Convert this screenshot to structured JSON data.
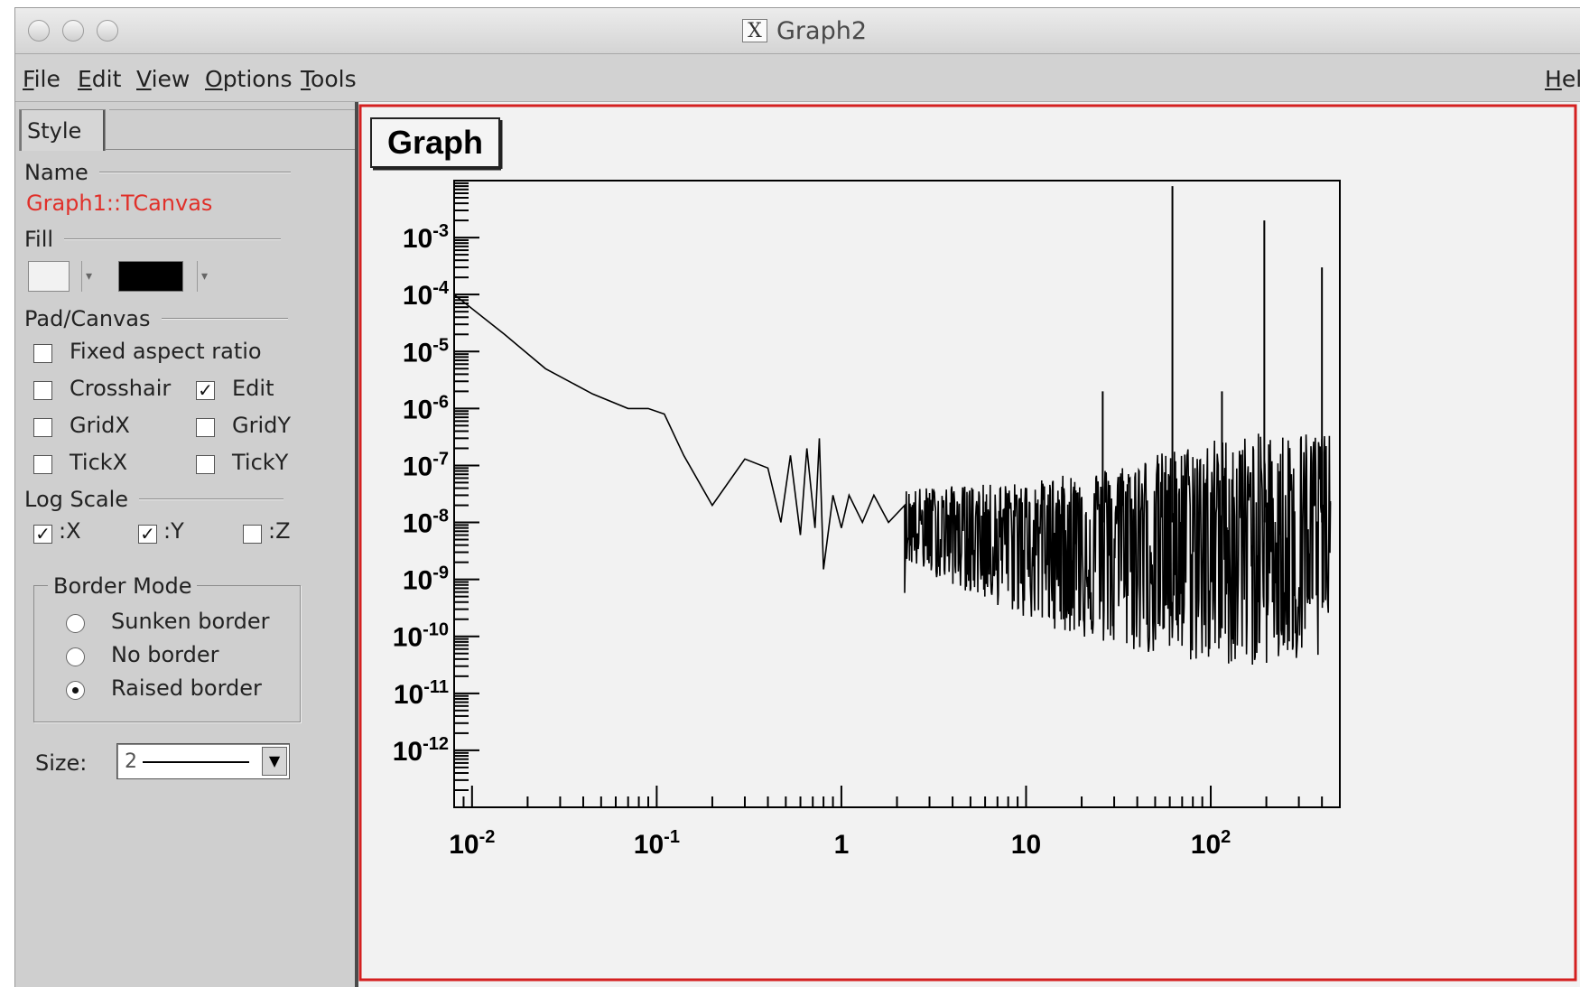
{
  "window": {
    "title": "Graph2",
    "title_icon": "x11-icon"
  },
  "menubar": {
    "items": [
      {
        "label": "File",
        "mnemonic": "F",
        "rest": "ile"
      },
      {
        "label": "Edit",
        "mnemonic": "E",
        "rest": "dit"
      },
      {
        "label": "View",
        "mnemonic": "V",
        "rest": "iew"
      },
      {
        "label": "Options",
        "mnemonic": "O",
        "rest": "ptions"
      },
      {
        "label": "Tools",
        "mnemonic": "T",
        "rest": "ools"
      }
    ],
    "help": {
      "label": "Help",
      "visible_text": "Hel",
      "mnemonic": "H",
      "rest": "el"
    }
  },
  "sidebar": {
    "tab_label": "Style",
    "name_section": "Name",
    "name_value": "Graph1::TCanvas",
    "fill_section": "Fill",
    "fill_colors": {
      "light": "#f2f2f2",
      "dark": "#000000"
    },
    "pad_section": "Pad/Canvas",
    "fixed_aspect": {
      "label": "Fixed aspect ratio",
      "checked": false
    },
    "crosshair": {
      "label": "Crosshair",
      "checked": false
    },
    "edit": {
      "label": "Edit",
      "checked": true
    },
    "gridx": {
      "label": "GridX",
      "checked": false
    },
    "gridy": {
      "label": "GridY",
      "checked": false
    },
    "tickx": {
      "label": "TickX",
      "checked": false
    },
    "ticky": {
      "label": "TickY",
      "checked": false
    },
    "log_section": "Log Scale",
    "logx": {
      "label": ":X",
      "checked": true
    },
    "logy": {
      "label": ":Y",
      "checked": true
    },
    "logz": {
      "label": ":Z",
      "checked": false
    },
    "border_mode": {
      "title": "Border Mode",
      "options": [
        "Sunken border",
        "No border",
        "Raised border"
      ],
      "selected": "Raised border"
    },
    "size_label": "Size:",
    "size_value": "2"
  },
  "canvas": {
    "title_box": "Graph",
    "pad_border_color": "#d42020"
  },
  "chart_data": {
    "type": "line",
    "title": "Graph",
    "xlabel": "",
    "ylabel": "",
    "xscale": "log",
    "yscale": "log",
    "xlim": [
      0.008,
      500
    ],
    "ylim": [
      1e-13,
      0.01
    ],
    "x_tick_labels": [
      "10^-2",
      "10^-1",
      "1",
      "10",
      "10^2"
    ],
    "y_tick_labels": [
      "10^-3",
      "10^-4",
      "10^-5",
      "10^-6",
      "10^-7",
      "10^-8",
      "10^-9",
      "10^-10",
      "10^-11",
      "10^-12"
    ],
    "grid": false,
    "legend": "none",
    "smooth_points": {
      "x": [
        0.008,
        0.015,
        0.025,
        0.045,
        0.07,
        0.09,
        0.11,
        0.14,
        0.2,
        0.3,
        0.4,
        0.47,
        0.53,
        0.6,
        0.65,
        0.72,
        0.76,
        0.8,
        0.9,
        1.0,
        1.1,
        1.3,
        1.5,
        1.8,
        2.2
      ],
      "y": [
        0.0001,
        2e-05,
        5e-06,
        1.8e-06,
        1e-06,
        1e-06,
        8e-07,
        1.5e-07,
        2e-08,
        1.3e-07,
        9e-08,
        1e-08,
        1.5e-07,
        6e-09,
        2e-07,
        8e-09,
        3e-07,
        1.5e-09,
        3e-08,
        8e-09,
        3e-08,
        1e-08,
        3e-08,
        1e-08,
        2e-08
      ]
    },
    "noise_band": {
      "x_range": [
        2.2,
        450
      ],
      "center": [
        [
          2.2,
          1e-08
        ],
        [
          10,
          1e-08
        ],
        [
          30,
          1e-08
        ],
        [
          100,
          1e-08
        ],
        [
          450,
          1e-08
        ]
      ],
      "upper": [
        [
          2.2,
          4e-08
        ],
        [
          10,
          5e-08
        ],
        [
          30,
          1e-07
        ],
        [
          100,
          3e-07
        ],
        [
          450,
          5e-07
        ]
      ],
      "lower": [
        [
          2.2,
          2e-09
        ],
        [
          10,
          2e-10
        ],
        [
          30,
          6e-11
        ],
        [
          100,
          3e-11
        ],
        [
          450,
          3e-11
        ]
      ]
    },
    "spikes": [
      {
        "x": 62,
        "y": 0.008
      },
      {
        "x": 195,
        "y": 0.002
      },
      {
        "x": 400,
        "y": 0.0003
      },
      {
        "x": 26,
        "y": 2e-06
      },
      {
        "x": 115,
        "y": 2e-06
      }
    ],
    "line_color": "#000000"
  }
}
